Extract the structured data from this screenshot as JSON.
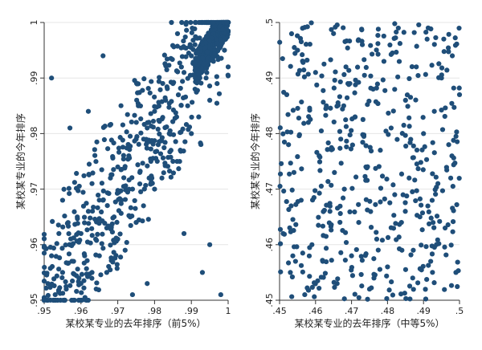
{
  "chart_data": [
    {
      "type": "scatter",
      "title": "",
      "xlabel": "某校某专业的去年排序（前5%）",
      "ylabel": "某校某专业的今年排序",
      "xlim": [
        0.95,
        1.0
      ],
      "ylim": [
        0.95,
        1.0
      ],
      "xticks": [
        ".95",
        ".96",
        ".97",
        ".98",
        ".99",
        "1"
      ],
      "yticks": [
        ".95",
        ".96",
        ".97",
        ".98",
        ".99",
        "1"
      ],
      "marker_color": "#1f4e79",
      "series": [
        {
          "points_summary": "approx. 1000 points, strongly positive correlation along the diagonal, denser near (1,1)",
          "points": [
            [
              0.951,
              0.953
            ],
            [
              0.952,
              0.958
            ],
            [
              0.953,
              0.951
            ],
            [
              0.954,
              0.962
            ],
            [
              0.955,
              0.955
            ],
            [
              0.955,
              0.968
            ],
            [
              0.956,
              0.952
            ],
            [
              0.957,
              0.96
            ],
            [
              0.958,
              0.957
            ],
            [
              0.959,
              0.965
            ],
            [
              0.96,
              0.953
            ],
            [
              0.96,
              0.962
            ],
            [
              0.961,
              0.958
            ],
            [
              0.962,
              0.966
            ],
            [
              0.963,
              0.955
            ],
            [
              0.963,
              0.971
            ],
            [
              0.964,
              0.961
            ],
            [
              0.965,
              0.958
            ],
            [
              0.966,
              0.968
            ],
            [
              0.967,
              0.963
            ],
            [
              0.967,
              0.955
            ],
            [
              0.968,
              0.972
            ],
            [
              0.969,
              0.965
            ],
            [
              0.97,
              0.961
            ],
            [
              0.97,
              0.974
            ],
            [
              0.971,
              0.968
            ],
            [
              0.972,
              0.959
            ],
            [
              0.973,
              0.976
            ],
            [
              0.974,
              0.97
            ],
            [
              0.975,
              0.964
            ],
            [
              0.975,
              0.979
            ],
            [
              0.976,
              0.973
            ],
            [
              0.977,
              0.967
            ],
            [
              0.978,
              0.981
            ],
            [
              0.979,
              0.975
            ],
            [
              0.98,
              0.97
            ],
            [
              0.98,
              0.984
            ],
            [
              0.981,
              0.978
            ],
            [
              0.982,
              0.972
            ],
            [
              0.983,
              0.986
            ],
            [
              0.984,
              0.98
            ],
            [
              0.985,
              0.975
            ],
            [
              0.985,
              0.989
            ],
            [
              0.986,
              0.983
            ],
            [
              0.987,
              0.977
            ],
            [
              0.988,
              0.991
            ],
            [
              0.989,
              0.985
            ],
            [
              0.99,
              0.98
            ],
            [
              0.99,
              0.994
            ],
            [
              0.991,
              0.988
            ],
            [
              0.992,
              0.983
            ],
            [
              0.993,
              0.996
            ],
            [
              0.994,
              0.99
            ],
            [
              0.995,
              0.986
            ],
            [
              0.995,
              0.998
            ],
            [
              0.996,
              0.993
            ],
            [
              0.997,
              0.989
            ],
            [
              0.998,
              0.999
            ],
            [
              0.999,
              0.995
            ],
            [
              1.0,
              0.992
            ],
            [
              0.952,
              0.99
            ],
            [
              0.966,
              0.994
            ],
            [
              0.957,
              0.981
            ],
            [
              0.993,
              0.955
            ],
            [
              0.998,
              0.951
            ],
            [
              0.995,
              0.96
            ],
            [
              0.974,
              0.951
            ],
            [
              0.962,
              0.984
            ],
            [
              0.988,
              0.962
            ],
            [
              0.978,
              0.953
            ]
          ]
        }
      ]
    },
    {
      "type": "scatter",
      "title": "",
      "xlabel": "某校某专业的去年排序（中等5%）",
      "ylabel": "某校某专业的今年排序",
      "xlim": [
        0.45,
        0.5
      ],
      "ylim": [
        0.45,
        0.5
      ],
      "xticks": [
        ".45",
        ".46",
        ".47",
        ".48",
        ".49",
        ".5"
      ],
      "yticks": [
        ".45",
        ".46",
        ".47",
        ".48",
        ".49",
        ".5"
      ],
      "marker_color": "#1f4e79",
      "series": [
        {
          "points_summary": "approx. 500 points, uniformly scattered with no visible correlation",
          "points": [
            [
              0.451,
              0.462
            ],
            [
              0.452,
              0.487
            ],
            [
              0.453,
              0.455
            ],
            [
              0.454,
              0.473
            ],
            [
              0.455,
              0.495
            ],
            [
              0.456,
              0.468
            ],
            [
              0.457,
              0.451
            ],
            [
              0.458,
              0.482
            ],
            [
              0.459,
              0.46
            ],
            [
              0.46,
              0.491
            ],
            [
              0.461,
              0.476
            ],
            [
              0.462,
              0.457
            ],
            [
              0.463,
              0.485
            ],
            [
              0.464,
              0.466
            ],
            [
              0.465,
              0.498
            ],
            [
              0.466,
              0.453
            ],
            [
              0.467,
              0.479
            ],
            [
              0.468,
              0.47
            ],
            [
              0.469,
              0.489
            ],
            [
              0.47,
              0.458
            ],
            [
              0.471,
              0.483
            ],
            [
              0.472,
              0.464
            ],
            [
              0.473,
              0.496
            ],
            [
              0.474,
              0.474
            ],
            [
              0.475,
              0.452
            ],
            [
              0.476,
              0.488
            ],
            [
              0.477,
              0.461
            ],
            [
              0.478,
              0.477
            ],
            [
              0.479,
              0.493
            ],
            [
              0.48,
              0.456
            ],
            [
              0.481,
              0.481
            ],
            [
              0.482,
              0.469
            ],
            [
              0.483,
              0.499
            ],
            [
              0.484,
              0.459
            ],
            [
              0.485,
              0.486
            ],
            [
              0.486,
              0.472
            ],
            [
              0.487,
              0.454
            ],
            [
              0.488,
              0.492
            ],
            [
              0.489,
              0.465
            ],
            [
              0.49,
              0.48
            ],
            [
              0.491,
              0.497
            ],
            [
              0.492,
              0.457
            ],
            [
              0.493,
              0.484
            ],
            [
              0.494,
              0.471
            ],
            [
              0.495,
              0.49
            ],
            [
              0.496,
              0.463
            ],
            [
              0.497,
              0.478
            ],
            [
              0.498,
              0.494
            ],
            [
              0.499,
              0.455
            ],
            [
              0.5,
              0.487
            ]
          ]
        }
      ]
    }
  ]
}
